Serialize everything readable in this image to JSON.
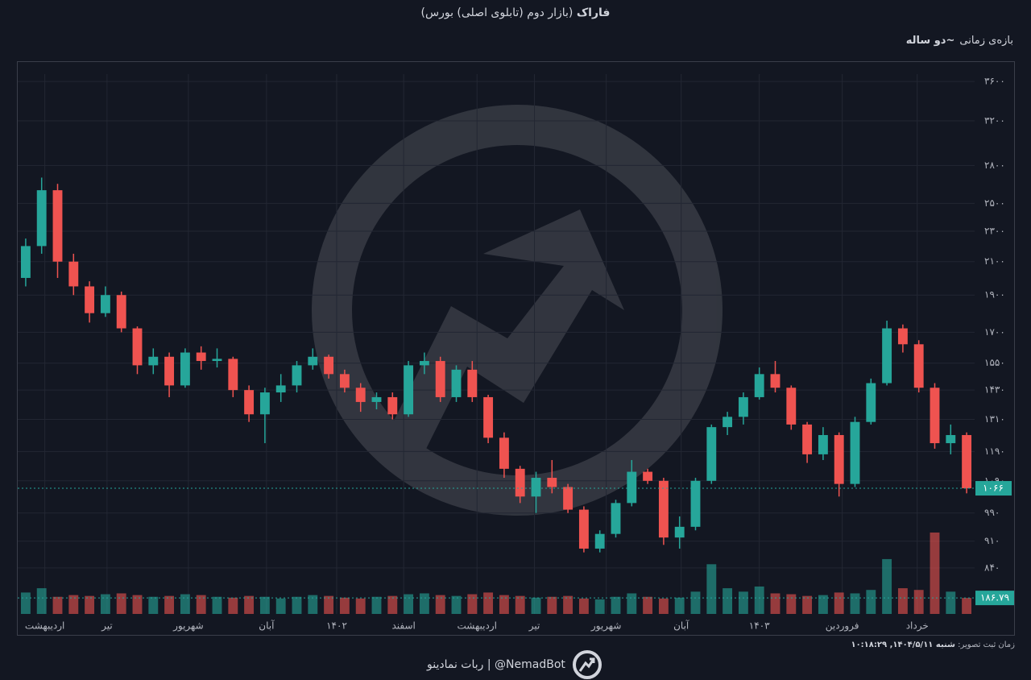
{
  "header": {
    "symbol": "فاراک",
    "market": "(بازار دوم (تابلوی اصلی) بورس)",
    "period_label": "بازه‌ی زمانی",
    "period_value": "~دو ساله"
  },
  "footer": {
    "bot": "ربات نمادینو | @NemadBot",
    "time_label": "زمان ثبت تصویر:",
    "time_value": "شنبه ۱۴۰۴/۵/۱۱, ۱۰:۱۸:۲۹"
  },
  "chart_data": {
    "type": "candlestick",
    "log_scale": true,
    "grid": true,
    "up_color": "#26a69a",
    "down_color": "#ef5350",
    "x": [
      0,
      1,
      2,
      3,
      4,
      5,
      6,
      7,
      8,
      9,
      10,
      11,
      12,
      13,
      14,
      15,
      16,
      17,
      18,
      19,
      20,
      21,
      22,
      23,
      24,
      25,
      26,
      27,
      28,
      29,
      30,
      31,
      32,
      33,
      34,
      35,
      36,
      37,
      38,
      39,
      40,
      41,
      42,
      43,
      44,
      45,
      46,
      47,
      48,
      49,
      50,
      51,
      52,
      53,
      54,
      55,
      56,
      57,
      58,
      59
    ],
    "open": [
      2000,
      2200,
      2600,
      2100,
      1950,
      1800,
      1900,
      1720,
      1540,
      1580,
      1450,
      1600,
      1560,
      1570,
      1430,
      1330,
      1420,
      1450,
      1540,
      1580,
      1500,
      1440,
      1380,
      1400,
      1330,
      1540,
      1560,
      1400,
      1520,
      1400,
      1240,
      1130,
      1040,
      1100,
      1070,
      1000,
      890,
      930,
      1020,
      1120,
      1090,
      920,
      950,
      1090,
      1280,
      1320,
      1400,
      1500,
      1440,
      1290,
      1180,
      1250,
      1080,
      1300,
      1460,
      1720,
      1640,
      1440,
      1220,
      1250
    ],
    "high": [
      2250,
      2700,
      2650,
      2150,
      1980,
      1950,
      1920,
      1730,
      1620,
      1600,
      1620,
      1630,
      1620,
      1580,
      1450,
      1440,
      1500,
      1560,
      1620,
      1590,
      1520,
      1460,
      1420,
      1420,
      1560,
      1600,
      1580,
      1540,
      1560,
      1410,
      1260,
      1140,
      1120,
      1160,
      1080,
      1010,
      940,
      1030,
      1160,
      1130,
      1100,
      980,
      1100,
      1290,
      1340,
      1420,
      1530,
      1560,
      1450,
      1300,
      1280,
      1260,
      1320,
      1480,
      1760,
      1740,
      1660,
      1460,
      1290,
      1260
    ],
    "low": [
      1950,
      2150,
      2000,
      1900,
      1750,
      1780,
      1700,
      1500,
      1500,
      1400,
      1440,
      1520,
      1530,
      1400,
      1300,
      1220,
      1380,
      1420,
      1520,
      1480,
      1420,
      1340,
      1350,
      1310,
      1320,
      1500,
      1380,
      1380,
      1380,
      1220,
      1100,
      1020,
      990,
      1050,
      990,
      880,
      880,
      920,
      1010,
      1080,
      900,
      890,
      940,
      1080,
      1250,
      1290,
      1390,
      1420,
      1270,
      1150,
      1160,
      1040,
      1070,
      1290,
      1450,
      1600,
      1420,
      1200,
      1180,
      1050
    ],
    "close": [
      2200,
      2600,
      2100,
      1950,
      1800,
      1900,
      1720,
      1540,
      1580,
      1450,
      1600,
      1560,
      1570,
      1430,
      1330,
      1420,
      1450,
      1540,
      1580,
      1500,
      1440,
      1380,
      1400,
      1330,
      1540,
      1560,
      1400,
      1520,
      1400,
      1240,
      1130,
      1040,
      1100,
      1070,
      1000,
      890,
      930,
      1020,
      1120,
      1090,
      920,
      950,
      1090,
      1280,
      1320,
      1400,
      1500,
      1440,
      1290,
      1180,
      1250,
      1080,
      1300,
      1460,
      1720,
      1640,
      1440,
      1220,
      1250,
      1066
    ],
    "volume": [
      250,
      300,
      200,
      220,
      210,
      230,
      240,
      220,
      200,
      210,
      230,
      220,
      200,
      190,
      210,
      200,
      180,
      200,
      220,
      210,
      190,
      180,
      200,
      210,
      230,
      240,
      220,
      210,
      230,
      250,
      220,
      210,
      190,
      200,
      210,
      180,
      170,
      200,
      240,
      200,
      180,
      190,
      260,
      580,
      300,
      260,
      320,
      240,
      230,
      210,
      220,
      250,
      240,
      280,
      640,
      300,
      280,
      950,
      260,
      186.79
    ],
    "last_price_label": "۱۰۶۶",
    "last_volume_label": "۱۸۶.۷۹",
    "xlim": [
      -0.5,
      59.5
    ],
    "ylim": [
      810,
      3815
    ],
    "volume_lim": [
      0,
      1100
    ],
    "xticks": [
      {
        "value": 1.2,
        "label": "اردیبهشت"
      },
      {
        "value": 5.1,
        "label": "تیر"
      },
      {
        "value": 10.2,
        "label": "شهریور"
      },
      {
        "value": 15.1,
        "label": "آبان"
      },
      {
        "value": 19.5,
        "label": "۱۴۰۲"
      },
      {
        "value": 23.7,
        "label": "اسفند"
      },
      {
        "value": 28.3,
        "label": "اردیبهشت"
      },
      {
        "value": 31.9,
        "label": "تیر"
      },
      {
        "value": 36.4,
        "label": "شهریور"
      },
      {
        "value": 41.1,
        "label": "آبان"
      },
      {
        "value": 46.0,
        "label": "۱۴۰۳"
      },
      {
        "value": 51.2,
        "label": "فروردین"
      },
      {
        "value": 55.9,
        "label": "خرداد"
      }
    ],
    "yticks": [
      {
        "value": 3600,
        "label": "۳۶۰۰"
      },
      {
        "value": 3200,
        "label": "۳۲۰۰"
      },
      {
        "value": 2800,
        "label": "۲۸۰۰"
      },
      {
        "value": 2500,
        "label": "۲۵۰۰"
      },
      {
        "value": 2300,
        "label": "۲۳۰۰"
      },
      {
        "value": 2100,
        "label": "۲۱۰۰"
      },
      {
        "value": 1900,
        "label": "۱۹۰۰"
      },
      {
        "value": 1700,
        "label": "۱۷۰۰"
      },
      {
        "value": 1550,
        "label": "۱۵۵۰"
      },
      {
        "value": 1430,
        "label": "۱۴۳۰"
      },
      {
        "value": 1310,
        "label": "۱۳۱۰"
      },
      {
        "value": 1190,
        "label": "۱۱۹۰"
      },
      {
        "value": 1090,
        "label": "۱۰۹۰"
      },
      {
        "value": 990,
        "label": "۹۹۰"
      },
      {
        "value": 910,
        "label": "۹۱۰"
      },
      {
        "value": 840,
        "label": "۸۴۰"
      }
    ]
  }
}
